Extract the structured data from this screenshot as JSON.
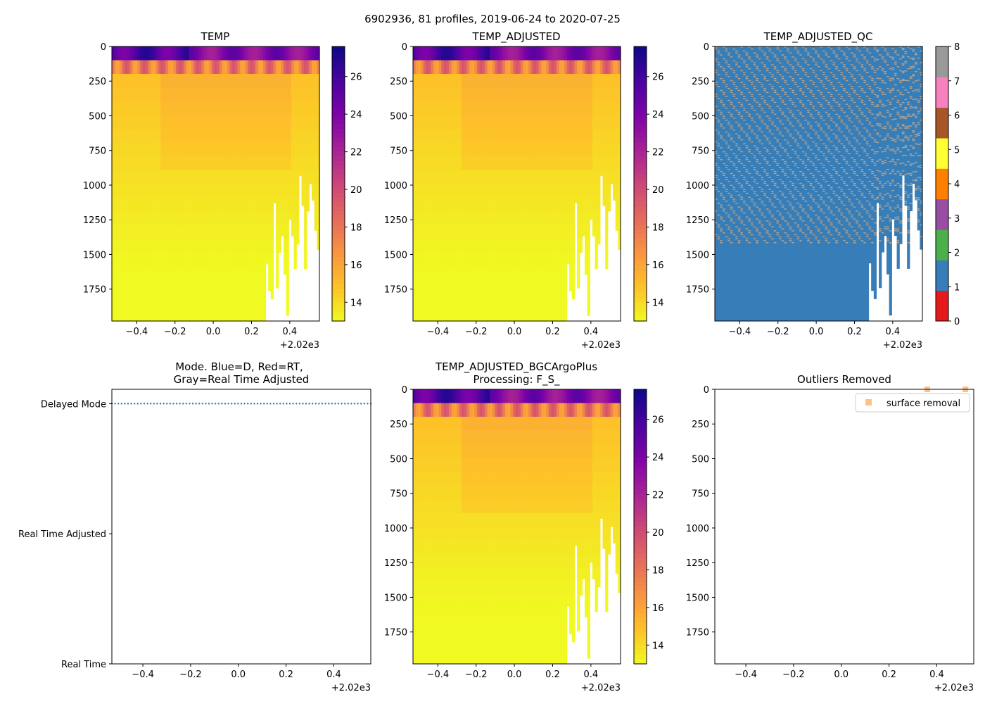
{
  "figure": {
    "suptitle": "6902936, 81 profiles, 2019-06-24 to 2020-07-25"
  },
  "colors": {
    "plasma_low": "#f0f921",
    "plasma_mid": "#cc4778",
    "plasma_high": "#0d0887",
    "qc_good": "#377eb8",
    "qc_flag": "#b0a090",
    "mode_delayed": "#1f77b4",
    "outlier_marker": "#ffbb78"
  },
  "chart_data": [
    {
      "id": "temp",
      "type": "heatmap",
      "title": "TEMP",
      "x": {
        "offset_label": "+2.02e3",
        "ticks": [
          -0.4,
          -0.2,
          0.0,
          0.2,
          0.4
        ],
        "tick_labels": [
          "−0.4",
          "−0.2",
          "0.0",
          "0.2",
          "0.4"
        ],
        "lim": [
          -0.53,
          0.555
        ]
      },
      "y": {
        "ticks": [
          0,
          250,
          500,
          750,
          1000,
          1250,
          1500,
          1750
        ],
        "tick_labels": [
          "0",
          "250",
          "500",
          "750",
          "1000",
          "1250",
          "1500",
          "1750"
        ],
        "lim": [
          1980,
          0
        ],
        "inverted": true
      },
      "colorbar": {
        "cmap": "plasma_r",
        "range": [
          13.0,
          27.6
        ],
        "ticks": [
          14,
          16,
          18,
          20,
          22,
          24,
          26
        ],
        "tick_labels": [
          "14",
          "16",
          "18",
          "20",
          "22",
          "24",
          "26"
        ]
      },
      "profile_count": 81,
      "profile_max_depth_fractions_end": [
        0.79,
        0.89,
        0.92,
        0.57,
        0.88,
        0.75,
        0.69,
        0.83,
        0.98,
        0.63,
        0.69,
        0.81,
        0.72,
        0.47,
        0.58,
        0.81,
        0.6,
        0.5,
        0.56,
        0.67,
        0.74
      ]
    },
    {
      "id": "temp_adjusted",
      "type": "heatmap",
      "title": "TEMP_ADJUSTED",
      "x": {
        "offset_label": "+2.02e3",
        "ticks": [
          -0.4,
          -0.2,
          0.0,
          0.2,
          0.4
        ],
        "tick_labels": [
          "−0.4",
          "−0.2",
          "0.0",
          "0.2",
          "0.4"
        ],
        "lim": [
          -0.53,
          0.555
        ]
      },
      "y": {
        "ticks": [
          0,
          250,
          500,
          750,
          1000,
          1250,
          1500,
          1750
        ],
        "tick_labels": [
          "0",
          "250",
          "500",
          "750",
          "1000",
          "1250",
          "1500",
          "1750"
        ],
        "lim": [
          1980,
          0
        ],
        "inverted": true
      },
      "colorbar": {
        "cmap": "plasma_r",
        "range": [
          13.0,
          27.6
        ],
        "ticks": [
          14,
          16,
          18,
          20,
          22,
          24,
          26
        ],
        "tick_labels": [
          "14",
          "16",
          "18",
          "20",
          "22",
          "24",
          "26"
        ]
      }
    },
    {
      "id": "temp_adjusted_qc",
      "type": "heatmap",
      "title": "TEMP_ADJUSTED_QC",
      "x": {
        "offset_label": "+2.02e3",
        "ticks": [
          -0.4,
          -0.2,
          0.0,
          0.2,
          0.4
        ],
        "tick_labels": [
          "−0.4",
          "−0.2",
          "0.0",
          "0.2",
          "0.4"
        ],
        "lim": [
          -0.53,
          0.555
        ]
      },
      "y": {
        "ticks": [
          0,
          250,
          500,
          750,
          1000,
          1250,
          1500,
          1750
        ],
        "tick_labels": [
          "0",
          "250",
          "500",
          "750",
          "1000",
          "1250",
          "1500",
          "1750"
        ],
        "lim": [
          1980,
          0
        ],
        "inverted": true
      },
      "colorbar": {
        "cmap": "Set1",
        "range": [
          0,
          8
        ],
        "segment_colors": [
          "#e41a1c",
          "#377eb8",
          "#4daf4a",
          "#984ea3",
          "#ff7f00",
          "#ffff33",
          "#a65628",
          "#f781bf",
          "#999999"
        ],
        "ticks": [
          0,
          1,
          2,
          3,
          4,
          5,
          6,
          7,
          8
        ],
        "tick_labels": [
          "0",
          "1",
          "2",
          "3",
          "4",
          "5",
          "6",
          "7",
          "8"
        ]
      }
    },
    {
      "id": "mode",
      "type": "scatter",
      "title_lines": [
        "Mode. Blue=D, Red=RT,",
        "Gray=Real Time Adjusted"
      ],
      "x": {
        "offset_label": "+2.02e3",
        "ticks": [
          -0.4,
          -0.2,
          0.0,
          0.2,
          0.4
        ],
        "tick_labels": [
          "−0.4",
          "−0.2",
          "0.0",
          "0.2",
          "0.4"
        ],
        "lim": [
          -0.53,
          0.555
        ]
      },
      "y": {
        "categories": [
          "Real Time",
          "Real Time Adjusted",
          "Delayed Mode"
        ],
        "lim": [
          0,
          2.11
        ]
      },
      "series": [
        {
          "name": "D",
          "category": "Delayed Mode",
          "x_range": [
            -0.53,
            0.555
          ],
          "count": 81
        }
      ]
    },
    {
      "id": "bgcargoplus",
      "type": "heatmap",
      "title_lines": [
        "TEMP_ADJUSTED_BGCArgoPlus",
        "Processing: F_S_"
      ],
      "x": {
        "offset_label": "+2.02e3",
        "ticks": [
          -0.4,
          -0.2,
          0.0,
          0.2,
          0.4
        ],
        "tick_labels": [
          "−0.4",
          "−0.2",
          "0.0",
          "0.2",
          "0.4"
        ],
        "lim": [
          -0.53,
          0.555
        ]
      },
      "y": {
        "ticks": [
          0,
          250,
          500,
          750,
          1000,
          1250,
          1500,
          1750
        ],
        "tick_labels": [
          "0",
          "250",
          "500",
          "750",
          "1000",
          "1250",
          "1500",
          "1750"
        ],
        "lim": [
          1980,
          0
        ],
        "inverted": true
      },
      "colorbar": {
        "cmap": "plasma_r",
        "range": [
          13.0,
          27.6
        ],
        "ticks": [
          14,
          16,
          18,
          20,
          22,
          24,
          26
        ],
        "tick_labels": [
          "14",
          "16",
          "18",
          "20",
          "22",
          "24",
          "26"
        ]
      }
    },
    {
      "id": "outliers",
      "type": "scatter",
      "title": "Outliers Removed",
      "x": {
        "offset_label": "+2.02e3",
        "ticks": [
          -0.4,
          -0.2,
          0.0,
          0.2,
          0.4
        ],
        "tick_labels": [
          "−0.4",
          "−0.2",
          "0.0",
          "0.2",
          "0.4"
        ],
        "lim": [
          -0.53,
          0.555
        ]
      },
      "y": {
        "ticks": [
          0,
          250,
          500,
          750,
          1000,
          1250,
          1500,
          1750
        ],
        "tick_labels": [
          "0",
          "250",
          "500",
          "750",
          "1000",
          "1250",
          "1500",
          "1750"
        ],
        "lim": [
          1980,
          0
        ],
        "inverted": true
      },
      "legend": {
        "placement": "top-right",
        "entries": [
          "surface removal"
        ]
      },
      "series": [
        {
          "name": "surface removal",
          "points": [
            {
              "x": 0.36,
              "y": 0
            },
            {
              "x": 0.52,
              "y": 0
            }
          ]
        }
      ]
    }
  ]
}
